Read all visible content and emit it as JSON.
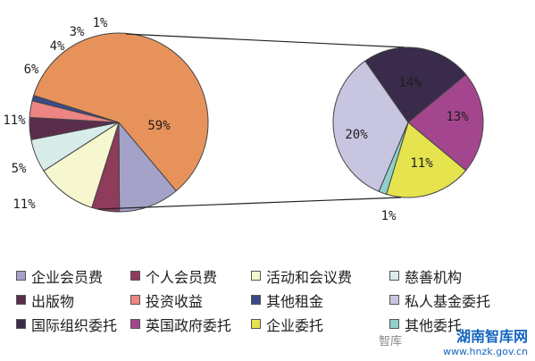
{
  "chart_data": [
    {
      "type": "pie",
      "labels": [
        "企业会员费",
        "个人会员费",
        "活动和会议费",
        "慈善机构",
        "出版物",
        "投资收益",
        "其他租金",
        "私人基金委托、国际组织委托、英国政府委托、企业委托、其他委托"
      ],
      "values": [
        11,
        5,
        11,
        6,
        4,
        3,
        1,
        59
      ],
      "value_labels": [
        "11%",
        "5%",
        "11%",
        "6%",
        "4%",
        "3%",
        "1%",
        "59%"
      ],
      "colors": [
        "#a5a2c9",
        "#8e3b5c",
        "#f7f7cf",
        "#d8ece9",
        "#5b2d4d",
        "#ec8583",
        "#3c4a89",
        "#e8925b"
      ]
    },
    {
      "type": "pie",
      "labels": [
        "私人基金委托",
        "国际组织委托",
        "英国政府委托",
        "企业委托",
        "其他委托"
      ],
      "values": [
        20,
        14,
        13,
        11,
        1
      ],
      "value_labels": [
        "20%",
        "14%",
        "13%",
        "11%",
        "1%"
      ],
      "colors": [
        "#c8c5e0",
        "#3a2a4b",
        "#a4468e",
        "#e5e34e",
        "#8fd0cc"
      ]
    }
  ],
  "legend": [
    [
      {
        "label": "企业会员费",
        "color": "#a5a2c9"
      },
      {
        "label": "个人会员费",
        "color": "#8e3b5c"
      },
      {
        "label": "活动和会议费",
        "color": "#f7f7cf"
      },
      {
        "label": "慈善机构",
        "color": "#d8ece9"
      }
    ],
    [
      {
        "label": "出版物",
        "color": "#5b2d4d"
      },
      {
        "label": "投资收益",
        "color": "#ec8583"
      },
      {
        "label": "其他租金",
        "color": "#3c4a89"
      },
      {
        "label": "私人基金委托",
        "color": "#c8c5e0"
      }
    ],
    [
      {
        "label": "国际组织委托",
        "color": "#3a2a4b"
      },
      {
        "label": "英国政府委托",
        "color": "#a4468e"
      },
      {
        "label": "企业委托",
        "color": "#e5e34e"
      },
      {
        "label": "其他委托",
        "color": "#8fd0cc"
      }
    ]
  ],
  "watermark": {
    "left": "智库",
    "main": "湖南智库网",
    "url": "www.hnzk.gov.cn"
  }
}
